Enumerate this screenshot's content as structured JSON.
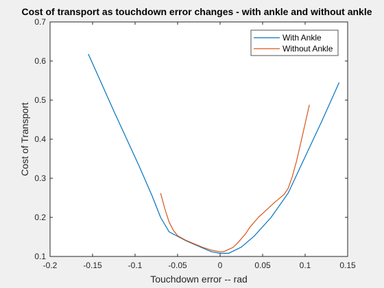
{
  "chart_data": {
    "type": "line",
    "title": "Cost of transport as touchdown error changes - with ankle and without ankle",
    "xlabel": "Touchdown error -- rad",
    "ylabel": "Cost of Transport",
    "xlim": [
      -0.2,
      0.15
    ],
    "ylim": [
      0.1,
      0.7
    ],
    "xticks": [
      -0.2,
      -0.15,
      -0.1,
      -0.05,
      0,
      0.05,
      0.1,
      0.15
    ],
    "xtick_labels": [
      "-0.2",
      "-0.15",
      "-0.1",
      "-0.05",
      "0",
      "0.05",
      "0.1",
      "0.15"
    ],
    "yticks": [
      0.1,
      0.2,
      0.3,
      0.4,
      0.5,
      0.6,
      0.7
    ],
    "ytick_labels": [
      "0.1",
      "0.2",
      "0.3",
      "0.4",
      "0.5",
      "0.6",
      "0.7"
    ],
    "grid": false,
    "legend_position": "top-right",
    "series": [
      {
        "name": "With Ankle",
        "color": "#0072bd",
        "x": [
          -0.155,
          -0.14,
          -0.125,
          -0.11,
          -0.095,
          -0.08,
          -0.07,
          -0.06,
          -0.04,
          -0.02,
          -0.01,
          0,
          0.01,
          0.025,
          0.04,
          0.06,
          0.08,
          0.1,
          0.12,
          0.14
        ],
        "y": [
          0.618,
          0.545,
          0.472,
          0.401,
          0.33,
          0.255,
          0.2,
          0.163,
          0.14,
          0.121,
          0.112,
          0.108,
          0.108,
          0.124,
          0.152,
          0.2,
          0.262,
          0.355,
          0.448,
          0.545
        ]
      },
      {
        "name": "Without Ankle",
        "color": "#d95319",
        "x": [
          -0.07,
          -0.065,
          -0.06,
          -0.055,
          -0.05,
          -0.04,
          -0.03,
          -0.02,
          -0.01,
          0,
          0.005,
          0.01,
          0.015,
          0.02,
          0.03,
          0.035,
          0.045,
          0.055,
          0.065,
          0.075,
          0.08,
          0.085,
          0.09,
          0.095,
          0.1,
          0.105
        ],
        "y": [
          0.262,
          0.222,
          0.188,
          0.167,
          0.153,
          0.141,
          0.132,
          0.123,
          0.116,
          0.112,
          0.113,
          0.118,
          0.123,
          0.133,
          0.158,
          0.175,
          0.2,
          0.22,
          0.24,
          0.258,
          0.274,
          0.305,
          0.345,
          0.392,
          0.44,
          0.488
        ]
      }
    ]
  }
}
